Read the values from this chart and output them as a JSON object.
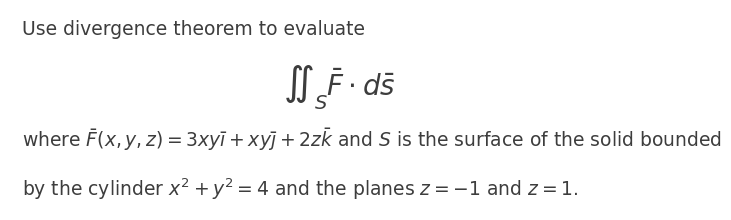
{
  "line1": "Use divergence theorem to evaluate",
  "integral_tex": "$\\iint_S \\bar{F} \\cdot d\\bar{s}$",
  "line3_tex": "where $\\bar{F}(x, y, z) = 3xy\\bar{\\imath} + xy\\bar{\\jmath} + 2z\\bar{k}$ and $S$ is the surface of the solid bounded",
  "line4_tex": "by the cylinder $x^2 + y^2 = 4$ and the planes $z = -1$ and $z = 1$.",
  "bg_color": "#ffffff",
  "text_color": "#3d3d3d",
  "font_size": 13.5,
  "integral_size": 20
}
